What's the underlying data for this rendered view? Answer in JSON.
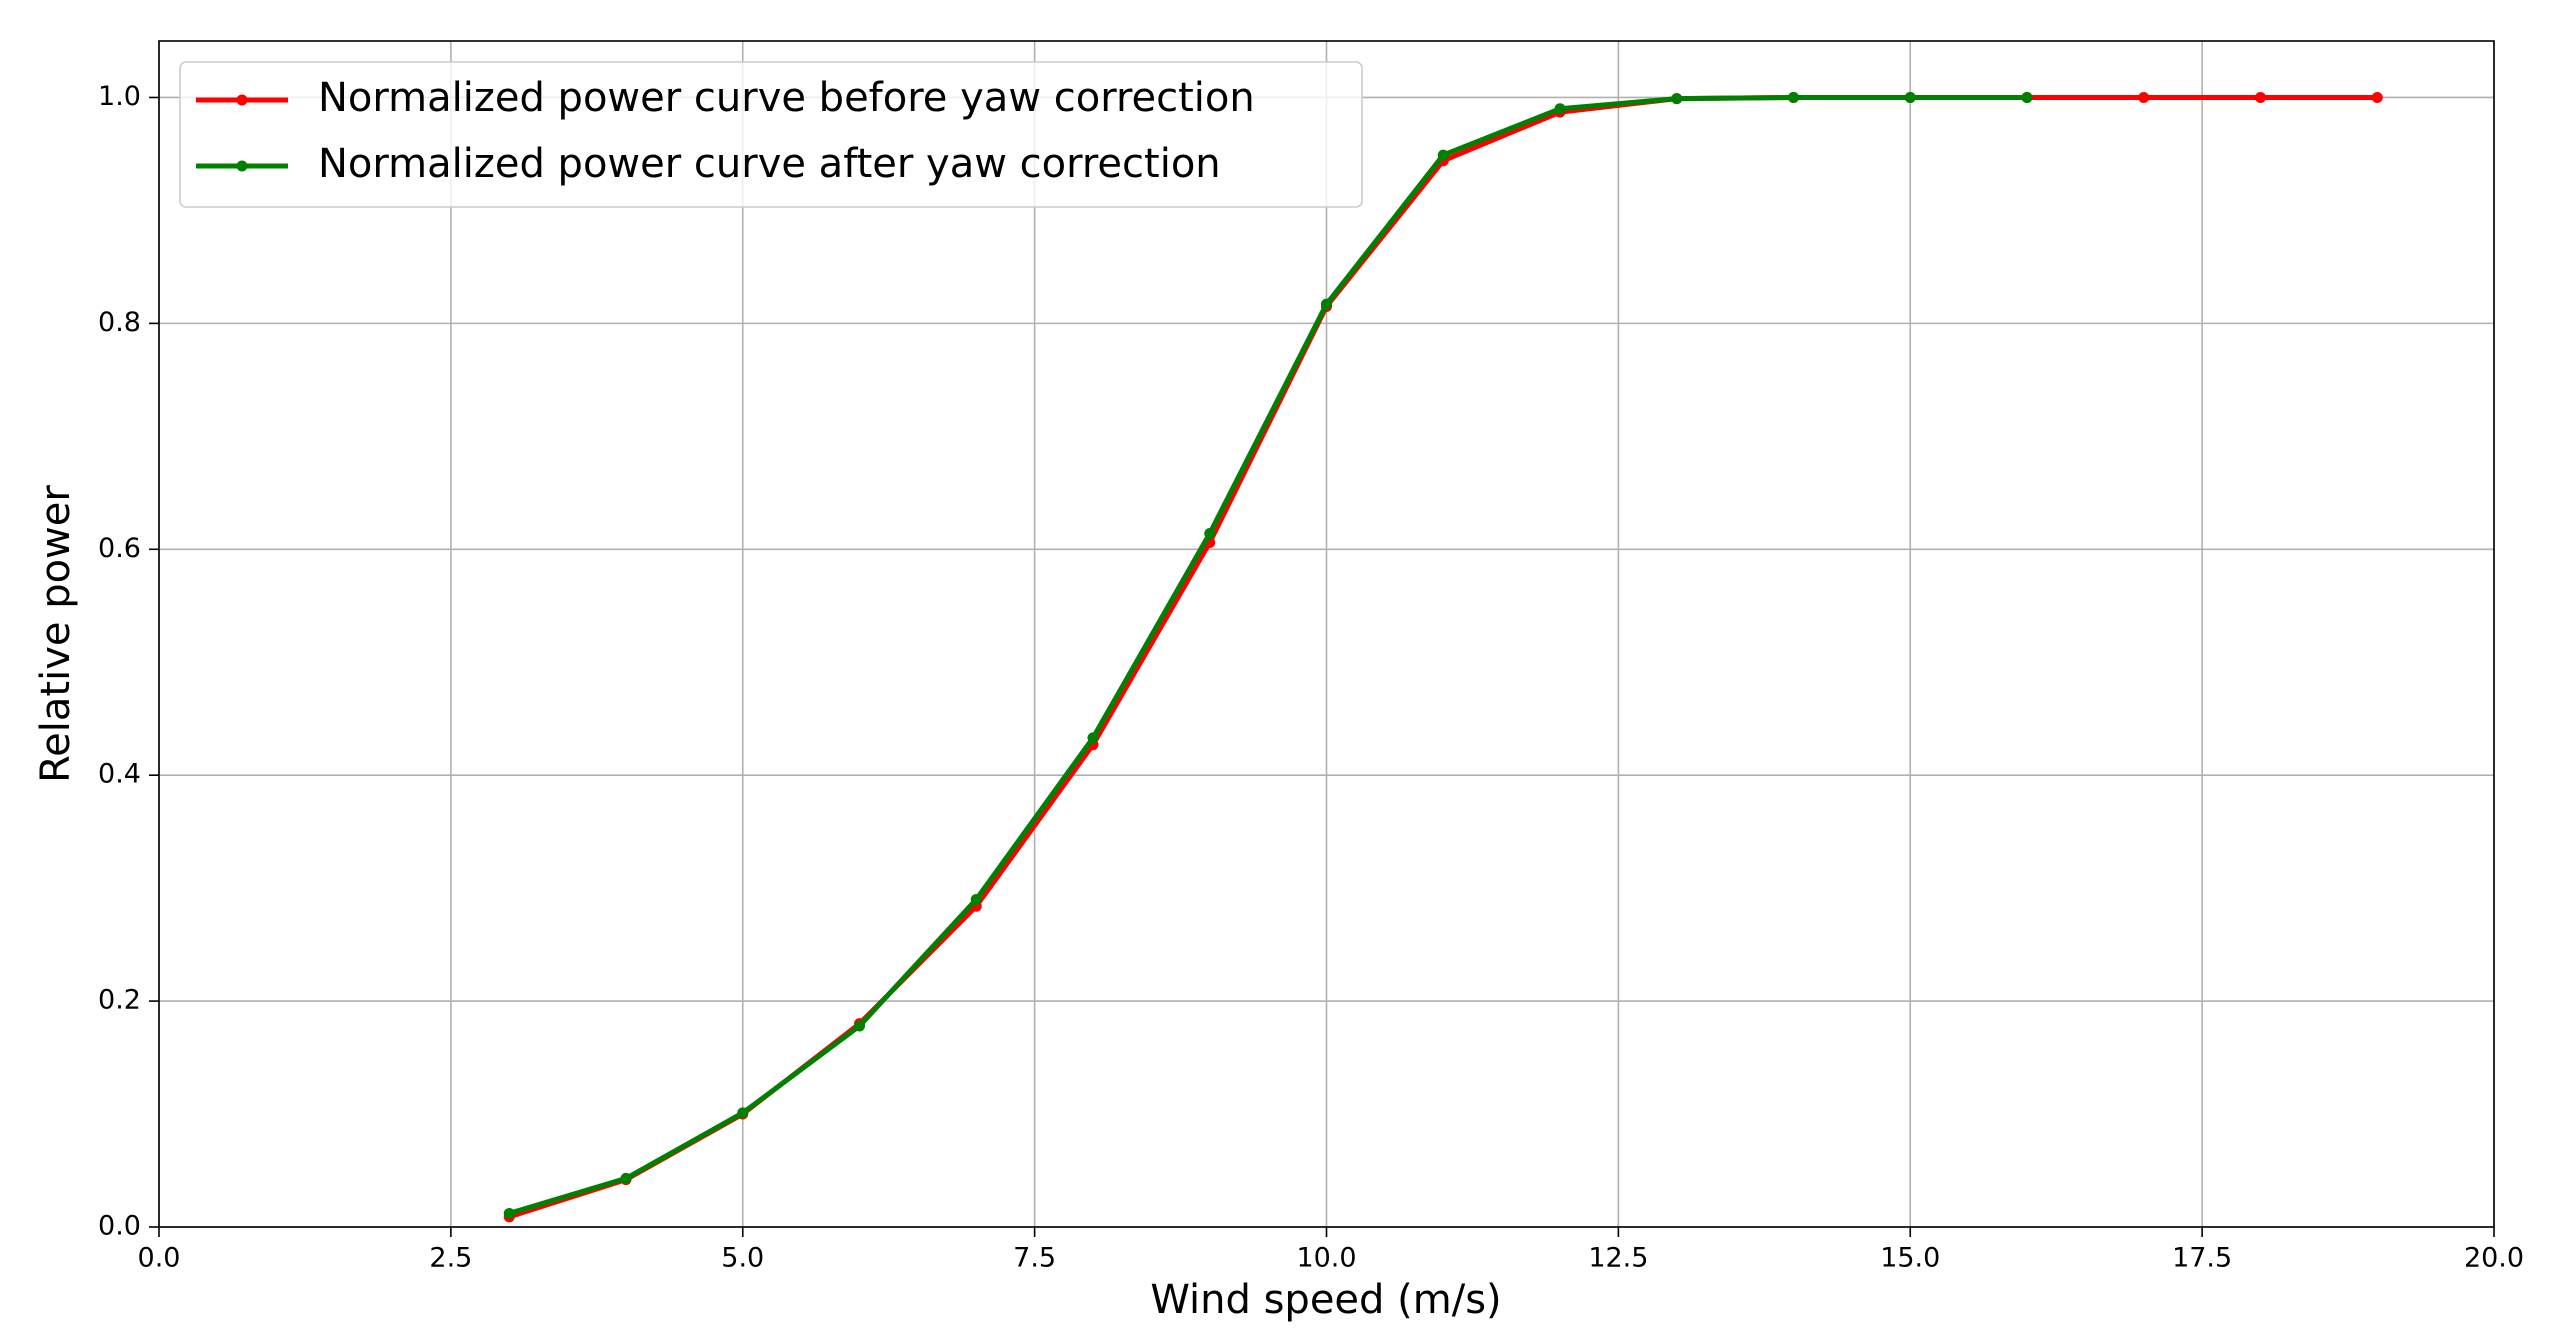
{
  "chart_data": {
    "type": "line",
    "xlabel": "Wind speed (m/s)",
    "ylabel": "Relative power",
    "x": [
      3,
      4,
      5,
      6,
      7,
      8,
      9,
      10,
      11,
      12,
      13,
      14,
      15,
      16,
      17,
      18,
      19
    ],
    "series": [
      {
        "name": "Normalized power curve before yaw correction",
        "color": "#ff0000",
        "values": [
          0.009,
          0.042,
          0.1,
          0.18,
          0.284,
          0.427,
          0.606,
          0.815,
          0.944,
          0.987,
          0.999,
          1.0,
          1.0,
          1.0,
          1.0,
          1.0,
          1.0
        ]
      },
      {
        "name": "Normalized power curve after yaw correction",
        "color": "#008000",
        "values": [
          0.012,
          0.043,
          0.101,
          0.178,
          0.29,
          0.433,
          0.614,
          0.817,
          0.949,
          0.99,
          0.999,
          1.0,
          1.0,
          1.0,
          null,
          null,
          null
        ]
      }
    ],
    "xlim": [
      0,
      20
    ],
    "xticks": [
      {
        "value": 0,
        "label": "0.0"
      },
      2.5,
      {
        "value": 5,
        "label": "5.0"
      },
      7.5,
      {
        "value": 10,
        "label": "10.0"
      },
      12.5,
      {
        "value": 15,
        "label": "15.0"
      },
      17.5,
      {
        "value": 20,
        "label": "20.0"
      }
    ],
    "ylim": [
      0,
      1.05
    ],
    "yticks": [
      {
        "value": 0,
        "label": "0.0"
      },
      0.2,
      0.4,
      0.6,
      0.8,
      {
        "value": 1,
        "label": "1.0"
      }
    ],
    "grid": true,
    "legend": "upper left"
  }
}
